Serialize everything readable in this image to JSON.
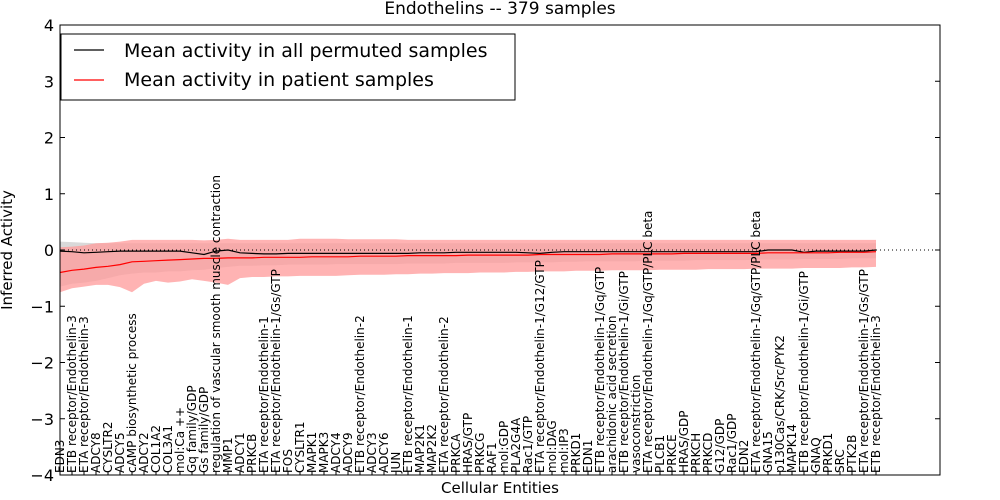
{
  "chart_data": {
    "type": "line",
    "title": "Endothelins -- 379 samples",
    "xlabel": "Cellular Entities",
    "ylabel": "Inferred Activity",
    "ylim": [
      -4,
      4
    ],
    "yticks": [
      "4",
      "3",
      "2",
      "1",
      "0",
      "−1",
      "−2",
      "−3",
      "−4"
    ],
    "grid": false,
    "legend_position": "top-left",
    "colors": {
      "permuted": "#000000",
      "patient": "#ff0000",
      "band_permuted": "#c0c0c0",
      "band_patient": "#ff9a9a"
    },
    "categories": [
      "EDN3",
      "ETB receptor/Endothelin-3",
      "ETA receptor/Endothelin-3",
      "ADCY8",
      "CYSLTR2",
      "ADCY5",
      "cAMP biosynthetic process",
      "ADCY2",
      "COL1A2",
      "COL3A1",
      "mol:Ca ++",
      "Gq family/GDP",
      "Gs family/GDP",
      "regulation of vascular smooth muscle contraction",
      "MMP1",
      "ADCY1",
      "PRKCB",
      "ETA receptor/Endothelin-1",
      "ETA receptor/Endothelin-1/Gs/GTP",
      "FOS",
      "CYSLTR1",
      "MAPK1",
      "MAPK3",
      "ADCY4",
      "ADCY9",
      "ETB receptor/Endothelin-2",
      "ADCY3",
      "ADCY6",
      "JUN",
      "ETB receptor/Endothelin-1",
      "MAP2K1",
      "MAP2K2",
      "ETA receptor/Endothelin-2",
      "PRKCA",
      "HRAS/GTP",
      "PRKCG",
      "RAF1",
      "mol:GDP",
      "PLA2G4A",
      "Rac1/GTP",
      "ETA receptor/Endothelin-1/G12/GTP",
      "mol:DAG",
      "mol:IP3",
      "PRKD1",
      "EDN1",
      "ETB receptor/Endothelin-1/Gq/GTP",
      "arachidonic acid secretion",
      "ETB receptor/Endothelin-1/Gi/GTP",
      "vasoconstriction",
      "ETA receptor/Endothelin-1/Gq/GTP/PLC beta",
      "PLCB1",
      "PRKCE",
      "HRAS/GDP",
      "PRKCH",
      "PRKCD",
      "G12/GDP",
      "Rac1/GDP",
      "EDN2",
      "ETA receptor/Endothelin-1/Gq/GTP/PLC beta",
      "GNA15",
      "p130Cas/CRK/Src/PYK2",
      "MAPK14",
      "ETB receptor/Endothelin-1/Gi/GTP",
      "GNAQ",
      "PRKD1",
      "SRC",
      "PTK2B",
      "ETA receptor/Endothelin-1/Gs/GTP",
      "ETB receptor/Endothelin-3"
    ],
    "x": [
      0,
      3,
      6,
      9,
      12,
      15,
      18,
      21,
      24,
      27,
      30,
      33,
      36,
      39,
      42,
      45,
      48,
      51,
      54,
      57,
      60,
      63,
      66,
      69,
      72,
      75,
      78,
      81,
      84,
      87,
      90,
      93,
      96,
      99,
      102,
      105,
      108,
      111,
      114,
      117,
      120,
      123,
      126,
      129,
      132,
      135,
      138,
      141,
      144,
      147,
      150,
      153,
      156,
      159,
      162,
      165,
      168,
      171,
      174,
      177,
      180,
      183,
      186,
      189,
      192,
      195,
      198,
      201,
      204
    ],
    "series": [
      {
        "name": "Mean activity in all permuted samples",
        "key": "permuted",
        "values": [
          -0.02,
          -0.03,
          -0.05,
          -0.04,
          -0.03,
          -0.02,
          -0.02,
          -0.02,
          -0.02,
          -0.02,
          -0.02,
          -0.05,
          -0.08,
          -0.02,
          0.0,
          -0.05,
          -0.06,
          -0.07,
          -0.07,
          -0.06,
          -0.06,
          -0.06,
          -0.06,
          -0.06,
          -0.06,
          -0.06,
          -0.06,
          -0.06,
          -0.06,
          -0.06,
          -0.05,
          -0.05,
          -0.05,
          -0.04,
          -0.04,
          -0.04,
          -0.04,
          -0.04,
          -0.04,
          -0.05,
          -0.06,
          -0.04,
          -0.03,
          -0.03,
          -0.03,
          -0.03,
          -0.03,
          -0.03,
          -0.03,
          -0.03,
          -0.03,
          -0.03,
          -0.03,
          -0.03,
          -0.03,
          -0.03,
          -0.03,
          -0.03,
          -0.03,
          0.0,
          0.0,
          0.0,
          -0.04,
          -0.02,
          -0.02,
          -0.02,
          -0.02,
          -0.02,
          0.0
        ],
        "lower": [
          -0.65,
          -0.6,
          -0.58,
          -0.55,
          -0.5,
          -0.45,
          -0.42,
          -0.4,
          -0.4,
          -0.38,
          -0.38,
          -0.36,
          -0.35,
          -0.32,
          -0.3,
          -0.28,
          -0.28,
          -0.27,
          -0.27,
          -0.26,
          -0.26,
          -0.26,
          -0.26,
          -0.25,
          -0.25,
          -0.25,
          -0.25,
          -0.25,
          -0.25,
          -0.24,
          -0.24,
          -0.24,
          -0.24,
          -0.23,
          -0.23,
          -0.23,
          -0.23,
          -0.23,
          -0.22,
          -0.22,
          -0.22,
          -0.22,
          -0.21,
          -0.21,
          -0.2,
          -0.2,
          -0.2,
          -0.2,
          -0.2,
          -0.19,
          -0.19,
          -0.19,
          -0.19,
          -0.18,
          -0.18,
          -0.18,
          -0.18,
          -0.18,
          -0.17,
          -0.17,
          -0.17,
          -0.17,
          -0.16,
          -0.16,
          -0.16,
          -0.16,
          -0.15,
          -0.15,
          -0.15
        ],
        "upper": [
          0.15,
          0.14,
          0.13,
          0.12,
          0.12,
          0.12,
          0.12,
          0.12,
          0.12,
          0.12,
          0.12,
          0.12,
          0.12,
          0.12,
          0.12,
          0.12,
          0.12,
          0.12,
          0.12,
          0.12,
          0.12,
          0.12,
          0.12,
          0.12,
          0.12,
          0.12,
          0.12,
          0.12,
          0.12,
          0.12,
          0.12,
          0.12,
          0.12,
          0.12,
          0.12,
          0.12,
          0.12,
          0.12,
          0.12,
          0.12,
          0.12,
          0.12,
          0.12,
          0.12,
          0.12,
          0.12,
          0.12,
          0.12,
          0.12,
          0.12,
          0.12,
          0.12,
          0.12,
          0.12,
          0.12,
          0.12,
          0.12,
          0.12,
          0.12,
          0.12,
          0.12,
          0.12,
          0.12,
          0.12,
          0.12,
          0.12,
          0.12,
          0.12,
          0.12
        ]
      },
      {
        "name": "Mean activity in patient samples",
        "key": "patient",
        "values": [
          -0.4,
          -0.36,
          -0.34,
          -0.31,
          -0.29,
          -0.26,
          -0.21,
          -0.2,
          -0.19,
          -0.18,
          -0.17,
          -0.16,
          -0.15,
          -0.15,
          -0.14,
          -0.14,
          -0.14,
          -0.13,
          -0.13,
          -0.13,
          -0.13,
          -0.12,
          -0.12,
          -0.12,
          -0.12,
          -0.11,
          -0.11,
          -0.11,
          -0.11,
          -0.1,
          -0.1,
          -0.1,
          -0.1,
          -0.1,
          -0.09,
          -0.09,
          -0.09,
          -0.09,
          -0.09,
          -0.09,
          -0.08,
          -0.08,
          -0.08,
          -0.08,
          -0.08,
          -0.08,
          -0.07,
          -0.07,
          -0.07,
          -0.07,
          -0.07,
          -0.07,
          -0.06,
          -0.06,
          -0.06,
          -0.06,
          -0.06,
          -0.06,
          -0.06,
          -0.05,
          -0.05,
          -0.05,
          -0.05,
          -0.05,
          -0.05,
          -0.04,
          -0.04,
          -0.04,
          -0.03
        ],
        "lower": [
          -0.75,
          -0.68,
          -0.65,
          -0.62,
          -0.62,
          -0.66,
          -0.75,
          -0.6,
          -0.55,
          -0.58,
          -0.56,
          -0.52,
          -0.55,
          -0.58,
          -0.62,
          -0.5,
          -0.48,
          -0.48,
          -0.47,
          -0.47,
          -0.46,
          -0.46,
          -0.46,
          -0.46,
          -0.45,
          -0.44,
          -0.44,
          -0.44,
          -0.43,
          -0.43,
          -0.42,
          -0.42,
          -0.41,
          -0.41,
          -0.41,
          -0.4,
          -0.4,
          -0.4,
          -0.39,
          -0.39,
          -0.38,
          -0.38,
          -0.38,
          -0.37,
          -0.37,
          -0.37,
          -0.36,
          -0.36,
          -0.36,
          -0.36,
          -0.35,
          -0.35,
          -0.35,
          -0.35,
          -0.34,
          -0.34,
          -0.34,
          -0.34,
          -0.33,
          -0.33,
          -0.33,
          -0.33,
          -0.32,
          -0.32,
          -0.32,
          -0.32,
          -0.31,
          -0.31,
          -0.3
        ],
        "upper": [
          0.05,
          0.06,
          0.08,
          0.12,
          0.13,
          0.15,
          0.18,
          0.18,
          0.18,
          0.18,
          0.18,
          0.18,
          0.17,
          0.18,
          0.2,
          0.18,
          0.18,
          0.18,
          0.18,
          0.18,
          0.2,
          0.2,
          0.2,
          0.2,
          0.19,
          0.19,
          0.19,
          0.19,
          0.19,
          0.18,
          0.18,
          0.18,
          0.18,
          0.18,
          0.18,
          0.18,
          0.18,
          0.18,
          0.18,
          0.18,
          0.18,
          0.18,
          0.18,
          0.18,
          0.18,
          0.18,
          0.18,
          0.18,
          0.18,
          0.18,
          0.18,
          0.18,
          0.18,
          0.18,
          0.18,
          0.18,
          0.18,
          0.18,
          0.18,
          0.18,
          0.18,
          0.18,
          0.18,
          0.18,
          0.18,
          0.18,
          0.18,
          0.18,
          0.18
        ]
      }
    ]
  }
}
